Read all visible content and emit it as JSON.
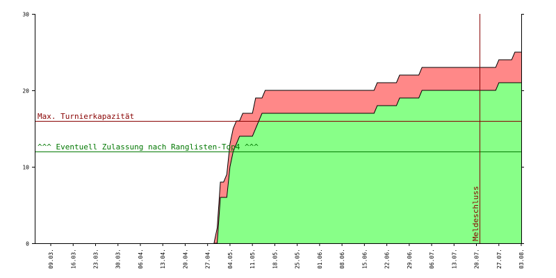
{
  "chart_data": {
    "type": "area",
    "title": "",
    "xlabel": "",
    "ylabel": "",
    "ylim": [
      0,
      30
    ],
    "xlim": [
      "2014-03-04",
      "2014-08-03"
    ],
    "yticks": [
      0,
      10,
      20,
      30
    ],
    "xticks": [
      "09.03.",
      "16.03.",
      "23.03.",
      "30.03.",
      "06.04.",
      "13.04.",
      "20.04.",
      "27.04.",
      "04.05.",
      "11.05.",
      "18.05.",
      "25.05.",
      "01.06.",
      "08.06.",
      "15.06.",
      "22.06.",
      "29.06.",
      "06.07.",
      "13.07.",
      "20.07.",
      "27.07.",
      "03.08."
    ],
    "grid": false,
    "series": [
      {
        "color": "#ff8888",
        "points": [
          [
            "2014-04-29",
            0
          ],
          [
            "2014-04-30",
            2
          ],
          [
            "2014-05-01",
            8
          ],
          [
            "2014-05-02",
            8
          ],
          [
            "2014-05-03",
            9
          ],
          [
            "2014-05-04",
            13
          ],
          [
            "2014-05-05",
            15
          ],
          [
            "2014-05-06",
            16
          ],
          [
            "2014-05-07",
            16
          ],
          [
            "2014-05-08",
            17
          ],
          [
            "2014-05-11",
            17
          ],
          [
            "2014-05-12",
            19
          ],
          [
            "2014-05-14",
            19
          ],
          [
            "2014-05-15",
            20
          ],
          [
            "2014-06-18",
            20
          ],
          [
            "2014-06-19",
            21
          ],
          [
            "2014-06-25",
            21
          ],
          [
            "2014-06-26",
            22
          ],
          [
            "2014-07-02",
            22
          ],
          [
            "2014-07-03",
            23
          ],
          [
            "2014-07-26",
            23
          ],
          [
            "2014-07-27",
            24
          ],
          [
            "2014-07-31",
            24
          ],
          [
            "2014-08-01",
            25
          ],
          [
            "2014-08-03",
            25
          ]
        ]
      },
      {
        "color": "#88ff88",
        "points": [
          [
            "2014-04-29",
            0
          ],
          [
            "2014-04-30",
            0
          ],
          [
            "2014-05-01",
            6
          ],
          [
            "2014-05-02",
            6
          ],
          [
            "2014-05-03",
            6
          ],
          [
            "2014-05-04",
            10
          ],
          [
            "2014-05-05",
            12
          ],
          [
            "2014-05-06",
            13
          ],
          [
            "2014-05-07",
            14
          ],
          [
            "2014-05-10",
            14
          ],
          [
            "2014-05-11",
            14
          ],
          [
            "2014-05-13",
            16
          ],
          [
            "2014-05-14",
            17
          ],
          [
            "2014-06-18",
            17
          ],
          [
            "2014-06-19",
            18
          ],
          [
            "2014-06-25",
            18
          ],
          [
            "2014-06-26",
            19
          ],
          [
            "2014-07-02",
            19
          ],
          [
            "2014-07-03",
            20
          ],
          [
            "2014-07-26",
            20
          ],
          [
            "2014-07-27",
            21
          ],
          [
            "2014-07-31",
            21
          ],
          [
            "2014-08-01",
            21
          ],
          [
            "2014-08-03",
            21
          ]
        ]
      }
    ],
    "reference_lines": [
      {
        "orientation": "horizontal",
        "value": 16,
        "label": "Max. Turnierkapazität",
        "color": "#880000"
      },
      {
        "orientation": "horizontal",
        "value": 12,
        "label": "^^^ Eventuell Zulassung nach Ranglisten-Top4 ^^^",
        "color": "#007700"
      },
      {
        "orientation": "vertical",
        "value": "2014-07-21",
        "label": "Meldeschluss",
        "color": "#880000"
      }
    ]
  }
}
